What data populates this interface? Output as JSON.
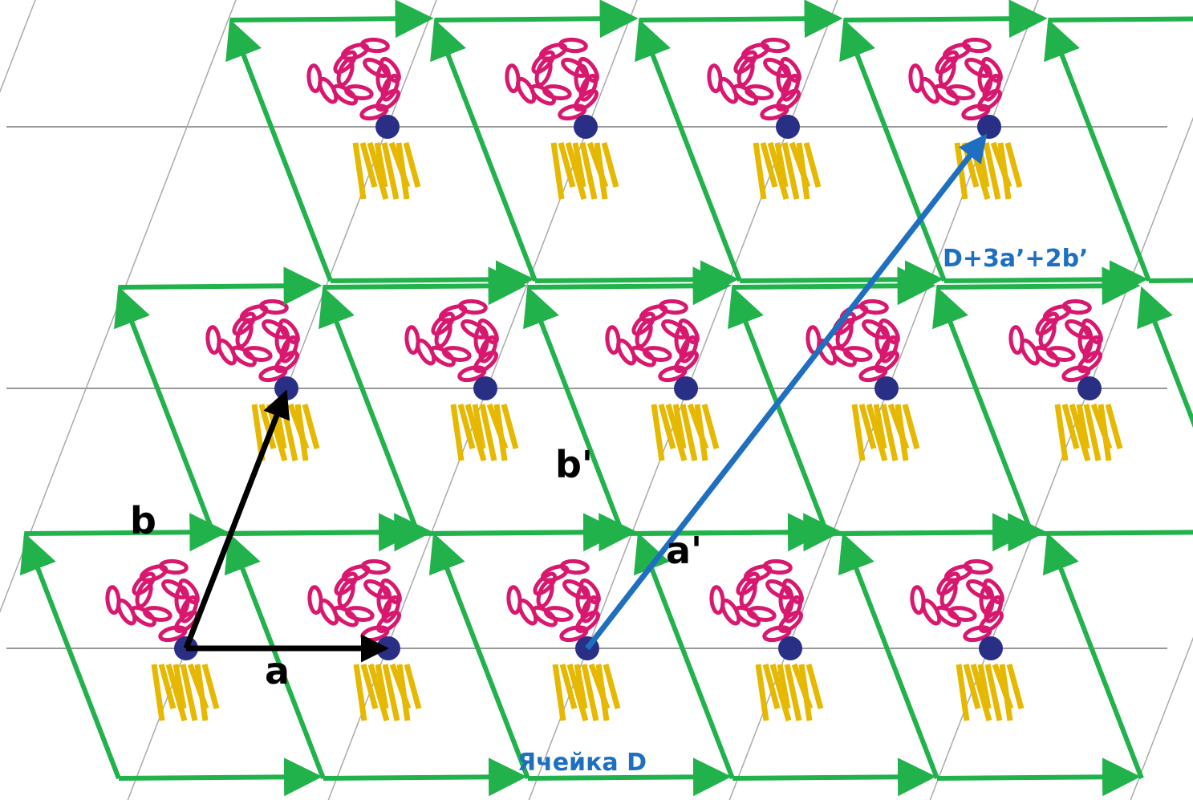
{
  "labels": {
    "a": "a",
    "b": "b",
    "b_prime": "b'",
    "a_prime": "a'",
    "cell": "Ячейка D",
    "vector": "D+3a’+2b’"
  }
}
